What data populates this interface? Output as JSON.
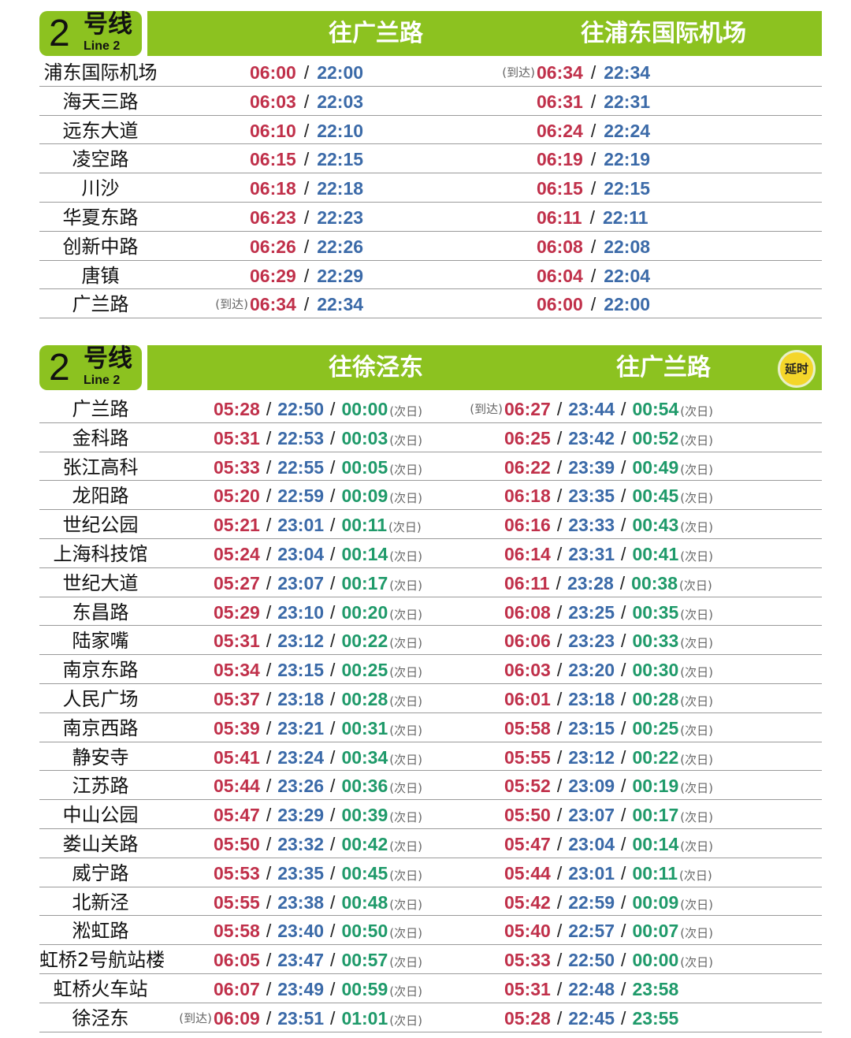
{
  "colors": {
    "header_green": "#8cc220",
    "first_train": "#c0304a",
    "last_train": "#3b6aa8",
    "late_train": "#1f9a6a"
  },
  "labels": {
    "arrive": "(到达)",
    "next_day": "(次日)"
  },
  "tables": [
    {
      "badge": {
        "number": "2",
        "chinese": "号线",
        "english": "Line 2"
      },
      "directions": [
        "往广兰路",
        "往浦东国际机场"
      ],
      "rows": [
        {
          "station": "浦东国际机场",
          "d1": {
            "times": [
              "06:00",
              "22:00"
            ]
          },
          "d2": {
            "pre": "(到达)",
            "times": [
              "06:34",
              "22:34"
            ]
          }
        },
        {
          "station": "海天三路",
          "d1": {
            "times": [
              "06:03",
              "22:03"
            ]
          },
          "d2": {
            "times": [
              "06:31",
              "22:31"
            ]
          }
        },
        {
          "station": "远东大道",
          "d1": {
            "times": [
              "06:10",
              "22:10"
            ]
          },
          "d2": {
            "times": [
              "06:24",
              "22:24"
            ]
          }
        },
        {
          "station": "凌空路",
          "d1": {
            "times": [
              "06:15",
              "22:15"
            ]
          },
          "d2": {
            "times": [
              "06:19",
              "22:19"
            ]
          }
        },
        {
          "station": "川沙",
          "d1": {
            "times": [
              "06:18",
              "22:18"
            ]
          },
          "d2": {
            "times": [
              "06:15",
              "22:15"
            ]
          }
        },
        {
          "station": "华夏东路",
          "d1": {
            "times": [
              "06:23",
              "22:23"
            ]
          },
          "d2": {
            "times": [
              "06:11",
              "22:11"
            ]
          }
        },
        {
          "station": "创新中路",
          "d1": {
            "times": [
              "06:26",
              "22:26"
            ]
          },
          "d2": {
            "times": [
              "06:08",
              "22:08"
            ]
          }
        },
        {
          "station": "唐镇",
          "d1": {
            "times": [
              "06:29",
              "22:29"
            ]
          },
          "d2": {
            "times": [
              "06:04",
              "22:04"
            ]
          }
        },
        {
          "station": "广兰路",
          "d1": {
            "pre": "(到达)",
            "times": [
              "06:34",
              "22:34"
            ]
          },
          "d2": {
            "times": [
              "06:00",
              "22:00"
            ]
          }
        }
      ]
    },
    {
      "badge": {
        "number": "2",
        "chinese": "号线",
        "english": "Line 2"
      },
      "directions": [
        "往徐泾东",
        "往广兰路"
      ],
      "delay_badge": "延时",
      "rows": [
        {
          "station": "广兰路",
          "d1": {
            "times": [
              "05:28",
              "22:50",
              "00:00"
            ],
            "suf": "(次日)"
          },
          "d2": {
            "pre": "(到达)",
            "times": [
              "06:27",
              "23:44",
              "00:54"
            ],
            "suf": "(次日)"
          }
        },
        {
          "station": "金科路",
          "d1": {
            "times": [
              "05:31",
              "22:53",
              "00:03"
            ],
            "suf": "(次日)"
          },
          "d2": {
            "times": [
              "06:25",
              "23:42",
              "00:52"
            ],
            "suf": "(次日)"
          }
        },
        {
          "station": "张江高科",
          "d1": {
            "times": [
              "05:33",
              "22:55",
              "00:05"
            ],
            "suf": "(次日)"
          },
          "d2": {
            "times": [
              "06:22",
              "23:39",
              "00:49"
            ],
            "suf": "(次日)"
          }
        },
        {
          "station": "龙阳路",
          "d1": {
            "times": [
              "05:20",
              "22:59",
              "00:09"
            ],
            "suf": "(次日)"
          },
          "d2": {
            "times": [
              "06:18",
              "23:35",
              "00:45"
            ],
            "suf": "(次日)"
          }
        },
        {
          "station": "世纪公园",
          "d1": {
            "times": [
              "05:21",
              "23:01",
              "00:11"
            ],
            "suf": "(次日)"
          },
          "d2": {
            "times": [
              "06:16",
              "23:33",
              "00:43"
            ],
            "suf": "(次日)"
          }
        },
        {
          "station": "上海科技馆",
          "d1": {
            "times": [
              "05:24",
              "23:04",
              "00:14"
            ],
            "suf": "(次日)"
          },
          "d2": {
            "times": [
              "06:14",
              "23:31",
              "00:41"
            ],
            "suf": "(次日)"
          }
        },
        {
          "station": "世纪大道",
          "d1": {
            "times": [
              "05:27",
              "23:07",
              "00:17"
            ],
            "suf": "(次日)"
          },
          "d2": {
            "times": [
              "06:11",
              "23:28",
              "00:38"
            ],
            "suf": "(次日)"
          }
        },
        {
          "station": "东昌路",
          "d1": {
            "times": [
              "05:29",
              "23:10",
              "00:20"
            ],
            "suf": "(次日)"
          },
          "d2": {
            "times": [
              "06:08",
              "23:25",
              "00:35"
            ],
            "suf": "(次日)"
          }
        },
        {
          "station": "陆家嘴",
          "d1": {
            "times": [
              "05:31",
              "23:12",
              "00:22"
            ],
            "suf": "(次日)"
          },
          "d2": {
            "times": [
              "06:06",
              "23:23",
              "00:33"
            ],
            "suf": "(次日)"
          }
        },
        {
          "station": "南京东路",
          "d1": {
            "times": [
              "05:34",
              "23:15",
              "00:25"
            ],
            "suf": "(次日)"
          },
          "d2": {
            "times": [
              "06:03",
              "23:20",
              "00:30"
            ],
            "suf": "(次日)"
          }
        },
        {
          "station": "人民广场",
          "d1": {
            "times": [
              "05:37",
              "23:18",
              "00:28"
            ],
            "suf": "(次日)"
          },
          "d2": {
            "times": [
              "06:01",
              "23:18",
              "00:28"
            ],
            "suf": "(次日)"
          }
        },
        {
          "station": "南京西路",
          "d1": {
            "times": [
              "05:39",
              "23:21",
              "00:31"
            ],
            "suf": "(次日)"
          },
          "d2": {
            "times": [
              "05:58",
              "23:15",
              "00:25"
            ],
            "suf": "(次日)"
          }
        },
        {
          "station": "静安寺",
          "d1": {
            "times": [
              "05:41",
              "23:24",
              "00:34"
            ],
            "suf": "(次日)"
          },
          "d2": {
            "times": [
              "05:55",
              "23:12",
              "00:22"
            ],
            "suf": "(次日)"
          }
        },
        {
          "station": "江苏路",
          "d1": {
            "times": [
              "05:44",
              "23:26",
              "00:36"
            ],
            "suf": "(次日)"
          },
          "d2": {
            "times": [
              "05:52",
              "23:09",
              "00:19"
            ],
            "suf": "(次日)"
          }
        },
        {
          "station": "中山公园",
          "d1": {
            "times": [
              "05:47",
              "23:29",
              "00:39"
            ],
            "suf": "(次日)"
          },
          "d2": {
            "times": [
              "05:50",
              "23:07",
              "00:17"
            ],
            "suf": "(次日)"
          }
        },
        {
          "station": "娄山关路",
          "d1": {
            "times": [
              "05:50",
              "23:32",
              "00:42"
            ],
            "suf": "(次日)"
          },
          "d2": {
            "times": [
              "05:47",
              "23:04",
              "00:14"
            ],
            "suf": "(次日)"
          }
        },
        {
          "station": "威宁路",
          "d1": {
            "times": [
              "05:53",
              "23:35",
              "00:45"
            ],
            "suf": "(次日)"
          },
          "d2": {
            "times": [
              "05:44",
              "23:01",
              "00:11"
            ],
            "suf": "(次日)"
          }
        },
        {
          "station": "北新泾",
          "d1": {
            "times": [
              "05:55",
              "23:38",
              "00:48"
            ],
            "suf": "(次日)"
          },
          "d2": {
            "times": [
              "05:42",
              "22:59",
              "00:09"
            ],
            "suf": "(次日)"
          }
        },
        {
          "station": "淞虹路",
          "d1": {
            "times": [
              "05:58",
              "23:40",
              "00:50"
            ],
            "suf": "(次日)"
          },
          "d2": {
            "times": [
              "05:40",
              "22:57",
              "00:07"
            ],
            "suf": "(次日)"
          }
        },
        {
          "station": "虹桥2号航站楼",
          "d1": {
            "times": [
              "06:05",
              "23:47",
              "00:57"
            ],
            "suf": "(次日)"
          },
          "d2": {
            "times": [
              "05:33",
              "22:50",
              "00:00"
            ],
            "suf": "(次日)"
          }
        },
        {
          "station": "虹桥火车站",
          "d1": {
            "times": [
              "06:07",
              "23:49",
              "00:59"
            ],
            "suf": "(次日)"
          },
          "d2": {
            "times": [
              "05:31",
              "22:48",
              "23:58"
            ]
          }
        },
        {
          "station": "徐泾东",
          "d1": {
            "pre": "(到达)",
            "times": [
              "06:09",
              "23:51",
              "01:01"
            ],
            "suf": "(次日)"
          },
          "d2": {
            "times": [
              "05:28",
              "22:45",
              "23:55"
            ]
          }
        }
      ]
    }
  ]
}
